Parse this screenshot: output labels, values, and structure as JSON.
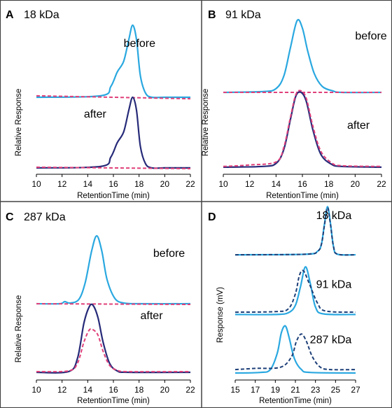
{
  "colors": {
    "before": "#2aa8e0",
    "after": "#262a78",
    "control": "#e0407a",
    "dashed_d": "#1d3f78",
    "axis": "#000000"
  },
  "chart_data": [
    {
      "panel": "A",
      "type": "line",
      "annotation": "18 kDa",
      "xlabel": "RetentionTime (min)",
      "ylabel": "Relative Response",
      "xlim": [
        10,
        22
      ],
      "xticks": [
        10,
        12,
        14,
        16,
        18,
        20,
        22
      ],
      "series": [
        {
          "name": "before",
          "style": "solid",
          "color": "#2aa8e0",
          "x": [
            10,
            15,
            15.8,
            16.3,
            16.8,
            17.2,
            17.5,
            17.8,
            18.1,
            18.5,
            19,
            20,
            22
          ],
          "y": [
            1.0,
            1.02,
            1.15,
            1.35,
            1.5,
            1.8,
            2.0,
            1.8,
            1.3,
            1.06,
            1.0,
            1.0,
            1.0
          ]
        },
        {
          "name": "",
          "style": "dashed",
          "color": "#e0407a",
          "x": [
            10,
            22
          ],
          "y": [
            1.02,
            0.98
          ]
        },
        {
          "name": "after",
          "style": "solid",
          "color": "#262a78",
          "x": [
            10,
            15,
            15.8,
            16.3,
            16.8,
            17.2,
            17.5,
            17.8,
            18.1,
            18.5,
            19,
            20,
            22
          ],
          "y": [
            0.02,
            0.04,
            0.17,
            0.37,
            0.52,
            0.82,
            1.0,
            0.82,
            0.32,
            0.08,
            0.02,
            0.02,
            0.02
          ]
        },
        {
          "name": "",
          "style": "dashed",
          "color": "#e0407a",
          "x": [
            10,
            22
          ],
          "y": [
            0.03,
            0.01
          ]
        }
      ]
    },
    {
      "panel": "B",
      "type": "line",
      "annotation": "91 kDa",
      "xlabel": "RetentionTime (min)",
      "ylabel": "Relative Response",
      "xlim": [
        10,
        22
      ],
      "xticks": [
        10,
        12,
        14,
        16,
        18,
        20,
        22
      ],
      "series": [
        {
          "name": "before",
          "style": "solid",
          "color": "#2aa8e0",
          "x": [
            10,
            13,
            14,
            14.6,
            15.1,
            15.6,
            16.0,
            16.4,
            16.9,
            17.5,
            18.3,
            19,
            22
          ],
          "y": [
            1.0,
            1.01,
            1.05,
            1.22,
            1.6,
            1.95,
            1.85,
            1.55,
            1.25,
            1.08,
            1.02,
            1.0,
            1.0
          ]
        },
        {
          "name": "",
          "style": "dashed",
          "color": "#e0407a",
          "x": [
            10,
            22
          ],
          "y": [
            1.0,
            1.0
          ]
        },
        {
          "name": "after",
          "style": "solid",
          "color": "#262a78",
          "x": [
            10,
            13,
            14,
            14.6,
            15.1,
            15.5,
            15.9,
            16.3,
            16.8,
            17.4,
            18.2,
            19,
            22
          ],
          "y": [
            0.01,
            0.02,
            0.06,
            0.25,
            0.65,
            0.95,
            1.0,
            0.88,
            0.5,
            0.18,
            0.05,
            0.02,
            0.01
          ]
        },
        {
          "name": "",
          "style": "dashed",
          "color": "#e0407a",
          "x": [
            10,
            12,
            14,
            14.6,
            15.1,
            15.5,
            15.9,
            16.3,
            16.8,
            17.4,
            18.2,
            19,
            22
          ],
          "y": [
            0.02,
            0.04,
            0.08,
            0.28,
            0.68,
            0.97,
            1.02,
            0.92,
            0.55,
            0.22,
            0.07,
            0.03,
            0.02
          ]
        }
      ]
    },
    {
      "panel": "C",
      "type": "line",
      "annotation": "287 kDa",
      "xlabel": "RetentionTime (min)",
      "ylabel": "Relative Response",
      "xlim": [
        10,
        22
      ],
      "xticks": [
        10,
        12,
        14,
        16,
        18,
        20,
        22
      ],
      "series": [
        {
          "name": "before",
          "style": "solid",
          "color": "#2aa8e0",
          "x": [
            10,
            11.8,
            12.2,
            12.6,
            13.3,
            13.8,
            14.3,
            14.7,
            15.1,
            15.5,
            16.1,
            16.8,
            18,
            22
          ],
          "y": [
            1.0,
            1.0,
            1.03,
            1.01,
            1.06,
            1.3,
            1.75,
            1.97,
            1.75,
            1.35,
            1.08,
            1.01,
            1.0,
            1.0
          ]
        },
        {
          "name": "",
          "style": "dashed",
          "color": "#e0407a",
          "x": [
            10,
            22
          ],
          "y": [
            1.0,
            0.99
          ]
        },
        {
          "name": "after",
          "style": "solid",
          "color": "#262a78",
          "x": [
            10,
            12.5,
            13.2,
            13.7,
            14.1,
            14.4,
            14.8,
            15.2,
            15.7,
            16.3,
            17.2,
            22
          ],
          "y": [
            0.02,
            0.03,
            0.22,
            0.72,
            0.95,
            0.98,
            0.8,
            0.45,
            0.15,
            0.04,
            0.02,
            0.02
          ]
        },
        {
          "name": "",
          "style": "dashed",
          "color": "#e0407a",
          "x": [
            10,
            12.5,
            13.2,
            13.7,
            14.1,
            14.4,
            14.8,
            15.2,
            15.7,
            16.3,
            17.2,
            22
          ],
          "y": [
            0.03,
            0.04,
            0.15,
            0.45,
            0.62,
            0.63,
            0.55,
            0.32,
            0.12,
            0.05,
            0.03,
            0.03
          ]
        }
      ]
    },
    {
      "panel": "D",
      "type": "line",
      "annotation": "",
      "xlabel": "RetentionTime (min)",
      "ylabel": "Response (mV)",
      "xlim": [
        15,
        27
      ],
      "xticks": [
        15,
        17,
        19,
        21,
        23,
        25,
        27
      ],
      "trace_labels": [
        "18 kDa",
        "91 kDa",
        "287 kDa"
      ],
      "series": [
        {
          "name": "",
          "style": "solid",
          "color": "#2aa8e0",
          "x": [
            15,
            22,
            23.2,
            23.6,
            23.9,
            24.2,
            24.5,
            24.8,
            25.2,
            27
          ],
          "y": [
            2.06,
            2.07,
            2.12,
            2.25,
            2.6,
            2.9,
            2.6,
            2.2,
            2.07,
            2.06
          ]
        },
        {
          "name": "",
          "style": "dashed",
          "color": "#1d3f78",
          "x": [
            15,
            22,
            23.2,
            23.6,
            23.9,
            24.2,
            24.5,
            24.8,
            25.2,
            27
          ],
          "y": [
            2.06,
            2.07,
            2.12,
            2.25,
            2.58,
            2.88,
            2.58,
            2.2,
            2.07,
            2.06
          ]
        },
        {
          "name": "",
          "style": "solid",
          "color": "#2aa8e0",
          "x": [
            15,
            19,
            20.3,
            21.0,
            21.5,
            22.0,
            22.5,
            23.0,
            23.8,
            27
          ],
          "y": [
            1.02,
            1.02,
            1.05,
            1.18,
            1.5,
            1.85,
            1.55,
            1.15,
            1.03,
            1.02
          ]
        },
        {
          "name": "",
          "style": "dashed",
          "color": "#1d3f78",
          "x": [
            15,
            19,
            20.3,
            21.0,
            21.4,
            21.8,
            22.4,
            23.2,
            24.0,
            27
          ],
          "y": [
            1.06,
            1.07,
            1.12,
            1.38,
            1.7,
            1.78,
            1.55,
            1.22,
            1.08,
            1.06
          ]
        },
        {
          "name": "",
          "style": "solid",
          "color": "#2aa8e0",
          "x": [
            15,
            17.5,
            18.5,
            19.2,
            19.6,
            20.0,
            20.4,
            20.9,
            21.6,
            22.5,
            27
          ],
          "y": [
            0.0,
            0.01,
            0.06,
            0.35,
            0.7,
            0.82,
            0.6,
            0.25,
            0.06,
            0.01,
            0.0
          ]
        },
        {
          "name": "",
          "style": "dashed",
          "color": "#1d3f78",
          "x": [
            15,
            17,
            19.5,
            20.6,
            21.1,
            21.6,
            22.1,
            22.7,
            23.5,
            24.5,
            27
          ],
          "y": [
            0.06,
            0.08,
            0.1,
            0.28,
            0.55,
            0.68,
            0.55,
            0.28,
            0.1,
            0.06,
            0.06
          ]
        }
      ]
    }
  ],
  "text_labels": [
    {
      "panel": 0,
      "text": "before",
      "x": 16.8,
      "y": 1.7
    },
    {
      "panel": 0,
      "text": "after",
      "x": 13.7,
      "y": 0.72
    },
    {
      "panel": 1,
      "text": "before",
      "x": 20.0,
      "y": 1.7
    },
    {
      "panel": 1,
      "text": "after",
      "x": 19.4,
      "y": 0.52
    },
    {
      "panel": 2,
      "text": "before",
      "x": 19.1,
      "y": 1.67
    },
    {
      "panel": 2,
      "text": "after",
      "x": 18.1,
      "y": 0.78
    },
    {
      "panel": 3,
      "text": "18 kDa",
      "x": 26.6,
      "y": 2.68
    },
    {
      "panel": 3,
      "text": "91 kDa",
      "x": 26.6,
      "y": 1.48
    },
    {
      "panel": 3,
      "text": "287 kDa",
      "x": 26.6,
      "y": 0.52
    }
  ]
}
